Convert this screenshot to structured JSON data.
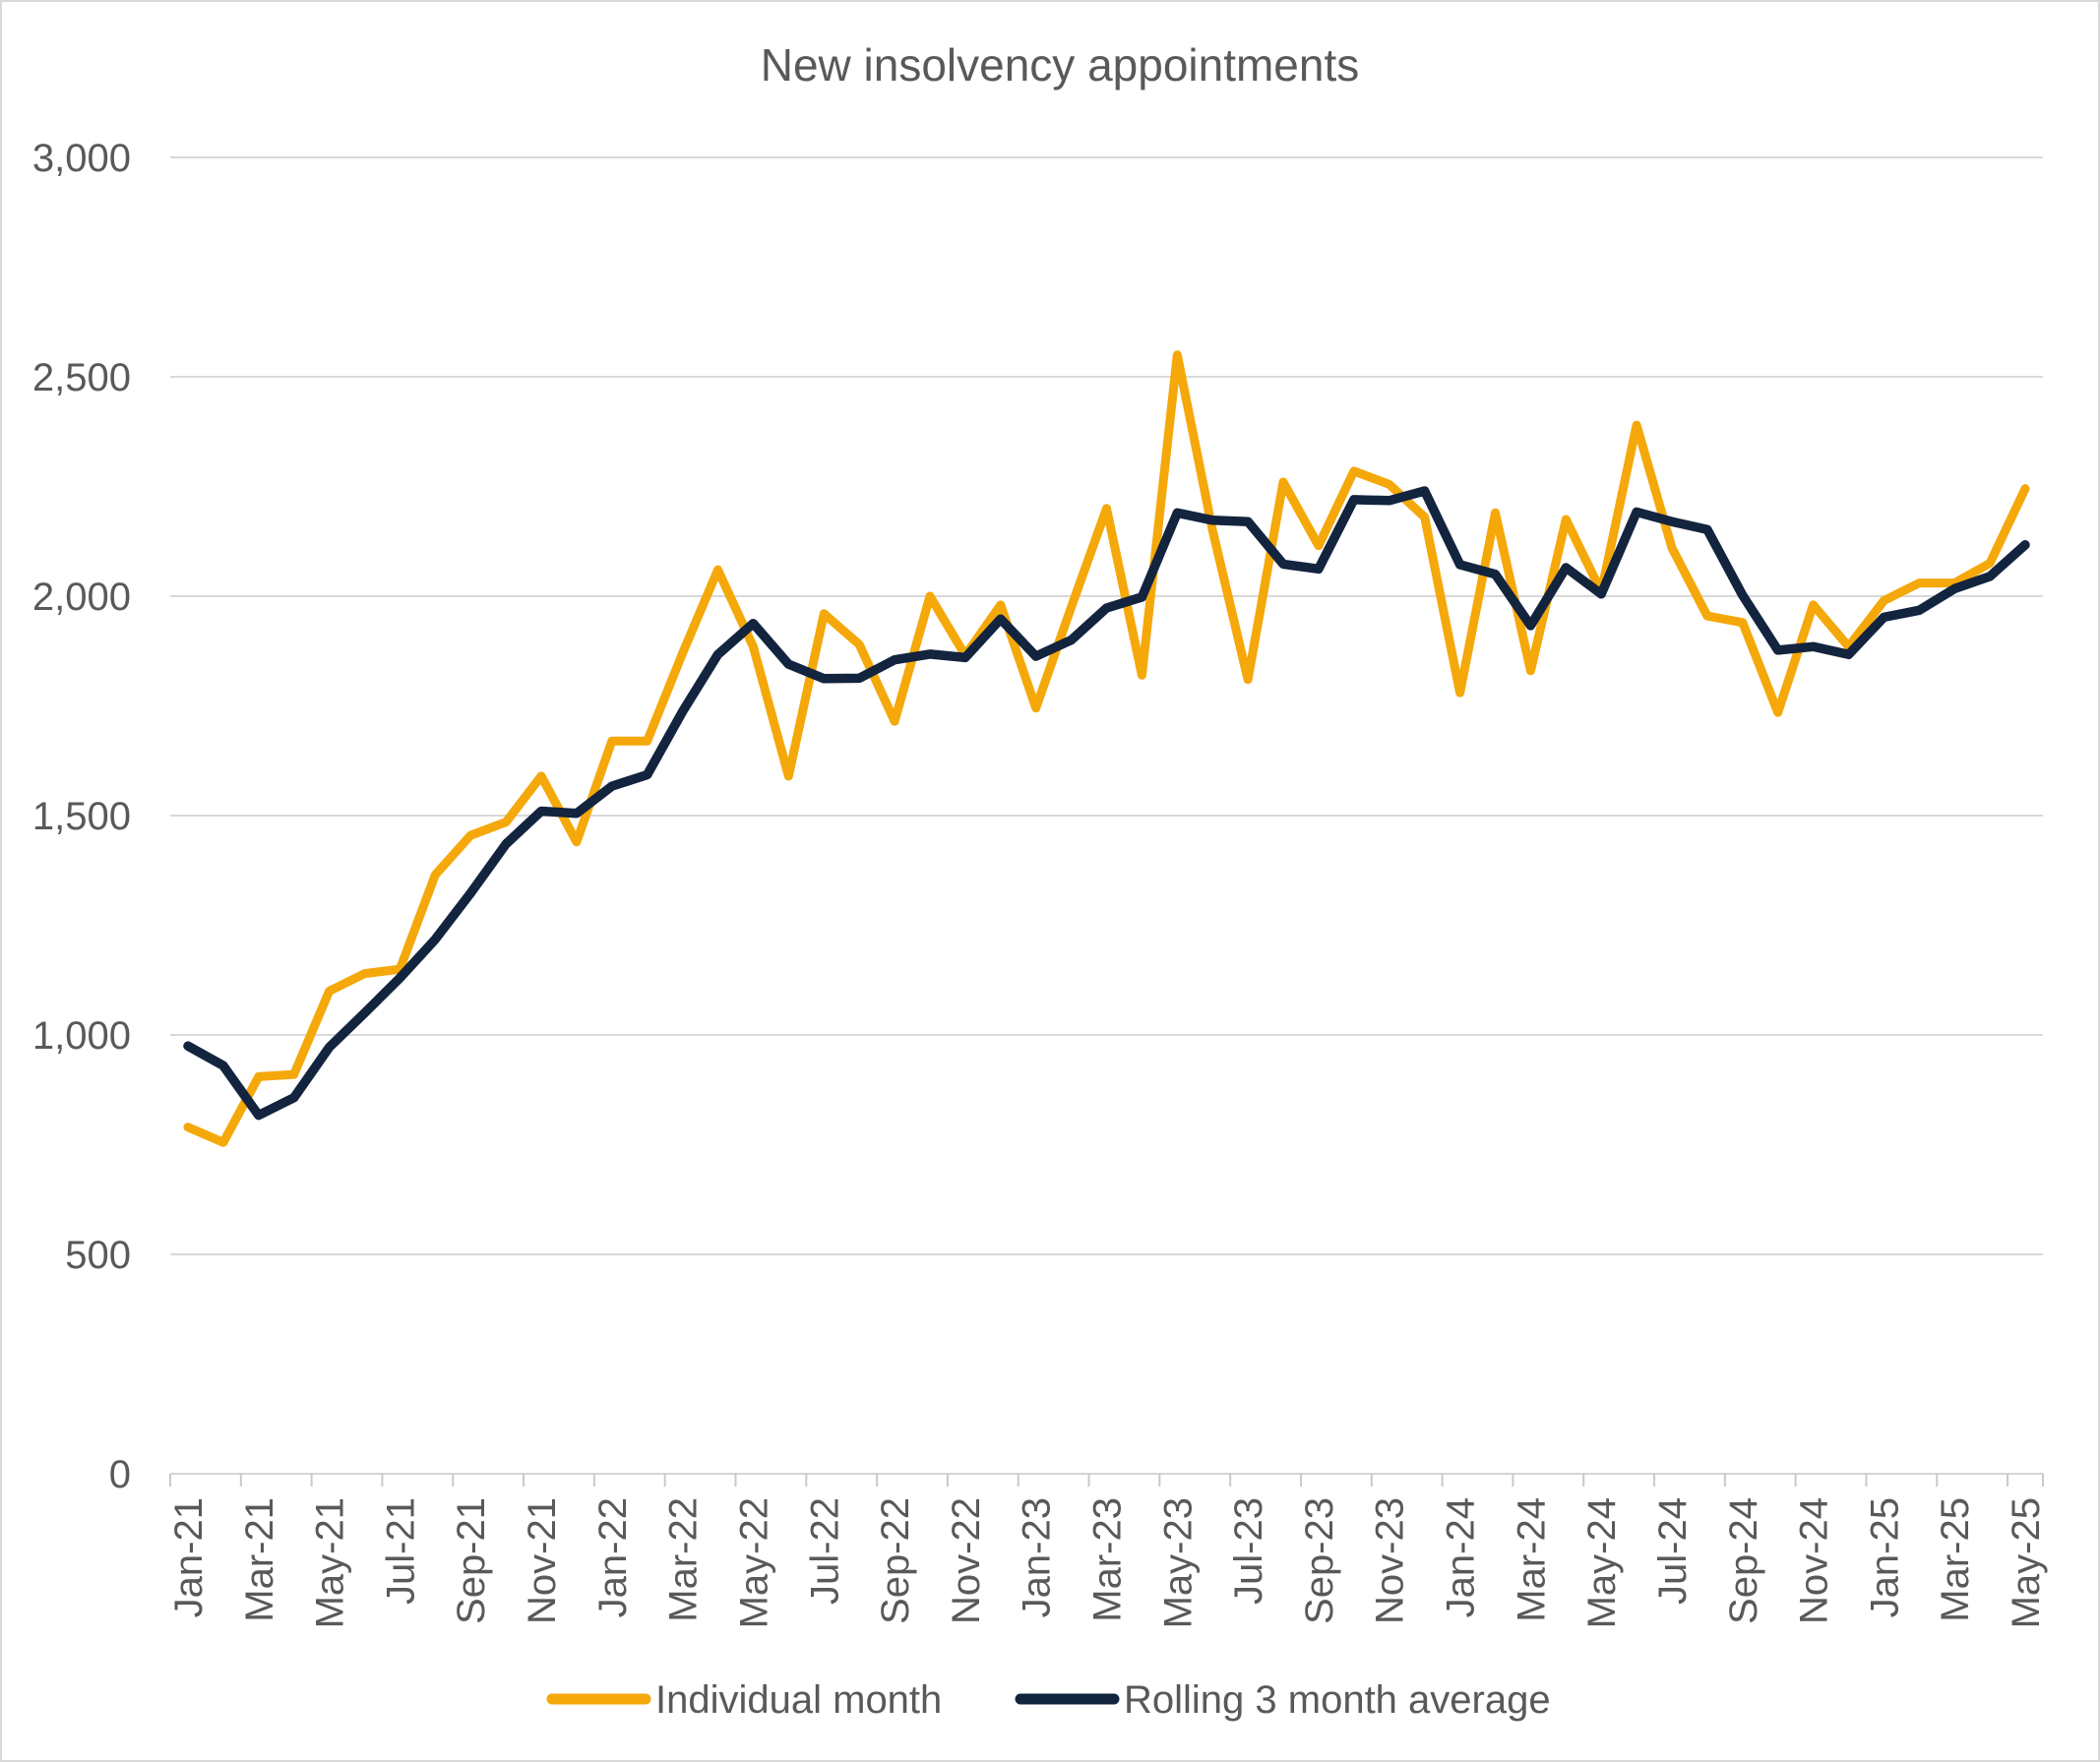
{
  "title": "New insolvency appointments",
  "colors": {
    "individual_month": "#F5A80A",
    "rolling_average": "#13243F",
    "gridline": "#D9D9D9",
    "axis_line": "#D5D5D5",
    "tick_mark": "#C9C9C9",
    "text": "#595959",
    "background": "#FFFFFF",
    "frame_border": "#D9D9D9"
  },
  "chart_data": {
    "type": "line",
    "title": "New insolvency appointments",
    "xlabel": "",
    "ylabel": "",
    "ylim": [
      0,
      3000
    ],
    "y_tick_step": 500,
    "y_tick_labels": [
      "0",
      "500",
      "1,000",
      "1,500",
      "2,000",
      "2,500",
      "3,000"
    ],
    "grid": "horizontal",
    "legend_position": "bottom",
    "x_label_rotation": -90,
    "x_labels_shown_every": 2,
    "categories": [
      "Jan-21",
      "Feb-21",
      "Mar-21",
      "Apr-21",
      "May-21",
      "Jun-21",
      "Jul-21",
      "Aug-21",
      "Sep-21",
      "Oct-21",
      "Nov-21",
      "Dec-21",
      "Jan-22",
      "Feb-22",
      "Mar-22",
      "Apr-22",
      "May-22",
      "Jun-22",
      "Jul-22",
      "Aug-22",
      "Sep-22",
      "Oct-22",
      "Nov-22",
      "Dec-22",
      "Jan-23",
      "Feb-23",
      "Mar-23",
      "Apr-23",
      "May-23",
      "Jun-23",
      "Jul-23",
      "Aug-23",
      "Sep-23",
      "Oct-23",
      "Nov-23",
      "Dec-23",
      "Jan-24",
      "Feb-24",
      "Mar-24",
      "Apr-24",
      "May-24",
      "Jun-24",
      "Jul-24",
      "Aug-24",
      "Sep-24",
      "Oct-24",
      "Nov-24",
      "Dec-24",
      "Jan-25",
      "Feb-25",
      "Mar-25",
      "Apr-25",
      "May-25"
    ],
    "series": [
      {
        "name": "Individual month",
        "color": "#F5A80A",
        "values": [
          790,
          755,
          905,
          910,
          1100,
          1140,
          1150,
          1365,
          1455,
          1485,
          1590,
          1440,
          1670,
          1670,
          1870,
          2060,
          1885,
          1590,
          1960,
          1890,
          1715,
          2000,
          1865,
          1980,
          1745,
          1975,
          2200,
          1820,
          2550,
          2150,
          1810,
          2260,
          2115,
          2285,
          2255,
          2180,
          1780,
          2190,
          1830,
          2175,
          2010,
          2390,
          2110,
          1955,
          1940,
          1735,
          1980,
          1885,
          1990,
          2030,
          2030,
          2075,
          2245
        ]
      },
      {
        "name": "Rolling 3 month average",
        "color": "#13243F",
        "values": [
          975,
          930,
          817,
          857,
          972,
          1050,
          1130,
          1218,
          1323,
          1435,
          1510,
          1505,
          1567,
          1593,
          1737,
          1867,
          1938,
          1845,
          1812,
          1813,
          1855,
          1868,
          1860,
          1948,
          1863,
          1900,
          1973,
          1998,
          2190,
          2173,
          2170,
          2073,
          2062,
          2220,
          2218,
          2240,
          2072,
          2050,
          1933,
          2065,
          2005,
          2192,
          2170,
          2152,
          2002,
          1877,
          1885,
          1867,
          1952,
          1968,
          2017,
          2045,
          2117
        ]
      }
    ],
    "legend": [
      "Individual month",
      "Rolling 3 month average"
    ]
  }
}
